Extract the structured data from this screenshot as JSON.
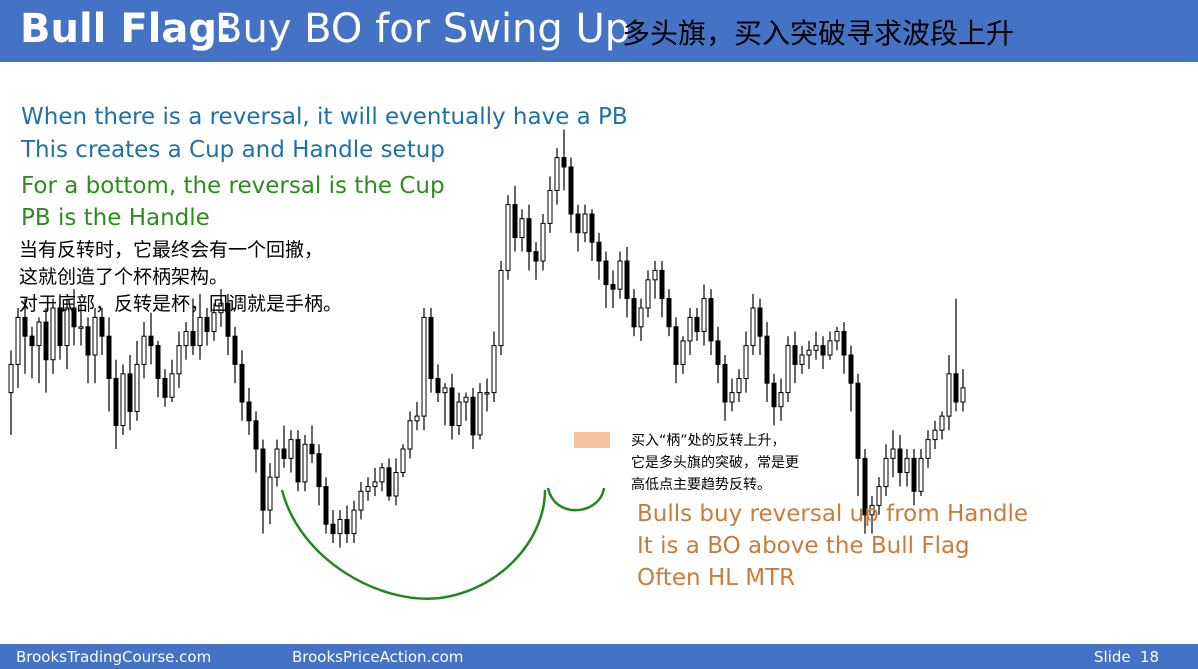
{
  "header": {
    "title_bold": "Bull Flag:",
    "title_rest": "Buy BO for Swing Up",
    "title_cn": "多头旗，买入突破寻求波段上升"
  },
  "notes": {
    "en_blue_1": "When there is a reversal, it will eventually have a PB",
    "en_blue_2": "This creates a Cup and Handle setup",
    "en_green_1": "For a bottom, the reversal is the Cup",
    "en_green_2": "PB is the Handle",
    "cn_1": "当有反转时，它最终会有一个回撤，",
    "cn_2": "这就创造了个杯柄架构。",
    "cn_3": "对于底部，反转是杯，回调就是手柄。",
    "cn_small_1": "买入“柄”处的反转上升，",
    "cn_small_2": "它是多头旗的突破，常是更",
    "cn_small_3": "高低点主要趋势反转。",
    "orange_1": "Bulls buy reversal up from Handle",
    "orange_2": "It is a BO above the Bull Flag",
    "orange_3": "Often HL MTR"
  },
  "footer": {
    "site_1": "BrooksTradingCourse.com",
    "site_2": "BrooksPriceAction.com",
    "slide_label": "Slide",
    "slide_number": "18"
  },
  "colors": {
    "header_bg": "#4472c4",
    "cup_curve": "#1e8a1e",
    "entry_highlight": "#f2b98c",
    "bar_color": "#000000"
  },
  "chart_data": {
    "type": "candlestick",
    "title": "",
    "xlabel": "",
    "ylabel": "",
    "ylim": [
      0,
      100
    ],
    "note": "price chart without printed axes; values are relative price levels",
    "candles": [
      [
        42,
        48,
        35,
        33,
        51
      ],
      [
        48,
        58,
        45,
        43,
        60
      ],
      [
        58,
        54,
        56,
        46,
        62
      ],
      [
        54,
        52,
        48,
        45,
        56
      ],
      [
        52,
        57,
        46,
        44,
        58
      ],
      [
        57,
        49,
        55,
        42,
        60
      ],
      [
        49,
        60,
        52,
        46,
        62
      ],
      [
        60,
        52,
        57,
        49,
        63
      ],
      [
        52,
        60,
        50,
        47,
        62
      ],
      [
        60,
        56,
        57,
        52,
        64
      ],
      [
        56,
        56,
        58,
        52,
        61
      ],
      [
        56,
        50,
        54,
        44,
        58
      ],
      [
        50,
        58,
        48,
        44,
        60
      ],
      [
        58,
        54,
        58,
        50,
        60
      ],
      [
        54,
        45,
        53,
        38,
        58
      ],
      [
        45,
        35,
        43,
        30,
        49
      ],
      [
        35,
        46,
        38,
        33,
        48
      ],
      [
        46,
        38,
        40,
        34,
        50
      ],
      [
        38,
        48,
        42,
        36,
        53
      ],
      [
        48,
        54,
        47,
        45,
        57
      ],
      [
        54,
        52,
        55,
        48,
        59
      ],
      [
        52,
        45,
        47,
        41,
        53
      ],
      [
        45,
        41,
        44,
        39,
        47
      ],
      [
        41,
        46,
        43,
        40,
        49
      ],
      [
        46,
        52,
        47,
        43,
        55
      ],
      [
        52,
        55,
        51,
        49,
        57
      ],
      [
        55,
        52,
        58,
        50,
        62
      ],
      [
        52,
        58,
        55,
        49,
        63
      ],
      [
        58,
        55,
        57,
        52,
        60
      ],
      [
        55,
        59,
        54,
        53,
        61
      ],
      [
        59,
        61,
        58,
        56,
        64
      ],
      [
        61,
        54,
        60,
        50,
        63
      ],
      [
        54,
        48,
        50,
        44,
        56
      ],
      [
        48,
        40,
        45,
        36,
        51
      ],
      [
        40,
        36,
        38,
        33,
        43
      ],
      [
        36,
        30,
        34,
        25,
        38
      ],
      [
        30,
        17,
        29,
        12,
        32
      ],
      [
        17,
        24,
        21,
        14,
        27
      ],
      [
        24,
        30,
        27,
        22,
        32
      ],
      [
        30,
        28,
        32,
        26,
        35
      ],
      [
        28,
        32,
        27,
        25,
        34
      ],
      [
        32,
        23,
        30,
        21,
        34
      ],
      [
        23,
        31,
        26,
        21,
        33
      ],
      [
        31,
        29,
        30,
        27,
        35
      ],
      [
        29,
        22,
        28,
        18,
        31
      ],
      [
        22,
        14,
        20,
        12,
        24
      ],
      [
        14,
        12,
        16,
        10,
        17
      ],
      [
        12,
        15,
        11,
        9,
        17
      ],
      [
        15,
        12,
        14,
        10,
        18
      ],
      [
        12,
        17,
        13,
        10,
        19
      ],
      [
        17,
        21,
        16,
        15,
        23
      ],
      [
        21,
        22,
        22,
        19,
        24
      ],
      [
        22,
        23,
        24,
        20,
        26
      ],
      [
        23,
        26,
        24,
        21,
        27
      ],
      [
        26,
        20,
        25,
        19,
        28
      ],
      [
        20,
        25,
        22,
        18,
        28
      ],
      [
        25,
        30,
        26,
        24,
        31
      ],
      [
        30,
        36,
        29,
        28,
        38
      ],
      [
        36,
        37,
        38,
        34,
        40
      ],
      [
        37,
        58,
        40,
        34,
        60
      ],
      [
        58,
        45,
        55,
        42,
        60
      ],
      [
        45,
        42,
        44,
        40,
        48
      ],
      [
        42,
        43,
        40,
        35,
        44
      ],
      [
        43,
        35,
        41,
        32,
        46
      ],
      [
        35,
        40,
        36,
        33,
        42
      ],
      [
        40,
        41,
        40,
        36,
        42
      ],
      [
        41,
        33,
        40,
        30,
        43
      ],
      [
        33,
        42,
        37,
        32,
        44
      ],
      [
        42,
        42,
        41,
        38,
        45
      ],
      [
        42,
        52,
        45,
        40,
        55
      ],
      [
        52,
        68,
        55,
        50,
        70
      ],
      [
        68,
        82,
        75,
        66,
        84
      ],
      [
        82,
        75,
        80,
        72,
        86
      ],
      [
        75,
        79,
        77,
        72,
        81
      ],
      [
        79,
        72,
        75,
        68,
        82
      ],
      [
        72,
        70,
        71,
        66,
        74
      ],
      [
        70,
        78,
        73,
        68,
        80
      ],
      [
        78,
        85,
        80,
        76,
        88
      ],
      [
        85,
        92,
        88,
        82,
        94
      ],
      [
        92,
        90,
        95,
        85,
        98
      ],
      [
        90,
        80,
        87,
        76,
        92
      ],
      [
        80,
        76,
        79,
        72,
        82
      ],
      [
        76,
        80,
        77,
        74,
        82
      ],
      [
        80,
        74,
        77,
        70,
        81
      ],
      [
        74,
        70,
        72,
        66,
        76
      ],
      [
        70,
        65,
        68,
        60,
        72
      ],
      [
        65,
        64,
        66,
        60,
        68
      ],
      [
        64,
        70,
        66,
        62,
        72
      ],
      [
        70,
        62,
        68,
        58,
        73
      ],
      [
        62,
        56,
        60,
        54,
        64
      ],
      [
        56,
        60,
        57,
        53,
        62
      ],
      [
        60,
        66,
        62,
        58,
        68
      ],
      [
        66,
        68,
        68,
        62,
        70
      ],
      [
        68,
        62,
        66,
        58,
        70
      ],
      [
        62,
        56,
        58,
        54,
        64
      ],
      [
        56,
        48,
        53,
        44,
        58
      ],
      [
        48,
        53,
        50,
        46,
        54
      ],
      [
        53,
        58,
        55,
        50,
        60
      ],
      [
        58,
        55,
        57,
        53,
        60
      ],
      [
        55,
        62,
        58,
        52,
        65
      ],
      [
        62,
        53,
        58,
        50,
        64
      ],
      [
        53,
        48,
        50,
        44,
        56
      ],
      [
        48,
        40,
        44,
        36,
        50
      ],
      [
        40,
        42,
        40,
        38,
        45
      ],
      [
        42,
        45,
        43,
        40,
        47
      ],
      [
        45,
        52,
        48,
        42,
        55
      ],
      [
        52,
        60,
        55,
        50,
        63
      ],
      [
        60,
        54,
        58,
        50,
        62
      ],
      [
        54,
        44,
        50,
        40,
        57
      ],
      [
        44,
        39,
        42,
        35,
        46
      ],
      [
        39,
        42,
        40,
        36,
        45
      ],
      [
        42,
        52,
        45,
        40,
        54
      ],
      [
        52,
        48,
        50,
        44,
        55
      ],
      [
        48,
        50,
        51,
        46,
        52
      ],
      [
        50,
        51,
        50,
        47,
        53
      ],
      [
        51,
        52,
        53,
        49,
        55
      ],
      [
        52,
        50,
        51,
        47,
        54
      ],
      [
        50,
        53,
        52,
        49,
        55
      ],
      [
        53,
        55,
        54,
        51,
        56
      ],
      [
        55,
        50,
        53,
        46,
        57
      ],
      [
        50,
        44,
        46,
        38,
        52
      ],
      [
        44,
        28,
        35,
        20,
        46
      ],
      [
        28,
        16,
        20,
        12,
        30
      ],
      [
        16,
        18,
        15,
        12,
        20
      ],
      [
        18,
        22,
        20,
        16,
        24
      ],
      [
        22,
        28,
        24,
        20,
        31
      ],
      [
        28,
        30,
        29,
        24,
        34
      ],
      [
        30,
        25,
        28,
        22,
        33
      ],
      [
        25,
        28,
        27,
        22,
        30
      ],
      [
        28,
        21,
        25,
        18,
        30
      ],
      [
        21,
        28,
        24,
        20,
        30
      ],
      [
        28,
        32,
        30,
        26,
        34
      ],
      [
        32,
        34,
        33,
        30,
        36
      ],
      [
        34,
        37,
        36,
        32,
        38
      ],
      [
        37,
        46,
        40,
        34,
        50
      ],
      [
        46,
        40,
        44,
        38,
        62
      ],
      [
        40,
        43,
        42,
        38,
        47
      ]
    ]
  }
}
